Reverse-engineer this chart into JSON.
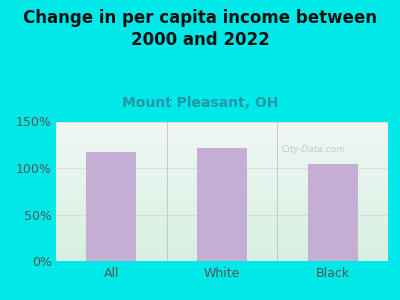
{
  "title": "Change in per capita income between\n2000 and 2022",
  "subtitle": "Mount Pleasant, OH",
  "categories": [
    "All",
    "White",
    "Black"
  ],
  "values": [
    117,
    121,
    104
  ],
  "bar_color": "#c4aed4",
  "background_outer": "#00e8e8",
  "background_plot_top_color": "#e8f0ec",
  "background_plot_bottom_color": "#ddeee8",
  "title_fontsize": 12,
  "subtitle_fontsize": 10,
  "tick_label_fontsize": 9,
  "axis_label_color": "#555555",
  "subtitle_color": "#2299aa",
  "ylim": [
    0,
    150
  ],
  "yticks": [
    0,
    50,
    100,
    150
  ],
  "ytick_labels": [
    "0%",
    "50%",
    "100%",
    "150%"
  ],
  "watermark": "City-Data.com",
  "grid_color": "#ddbbcc",
  "grid_alpha": 0.6
}
